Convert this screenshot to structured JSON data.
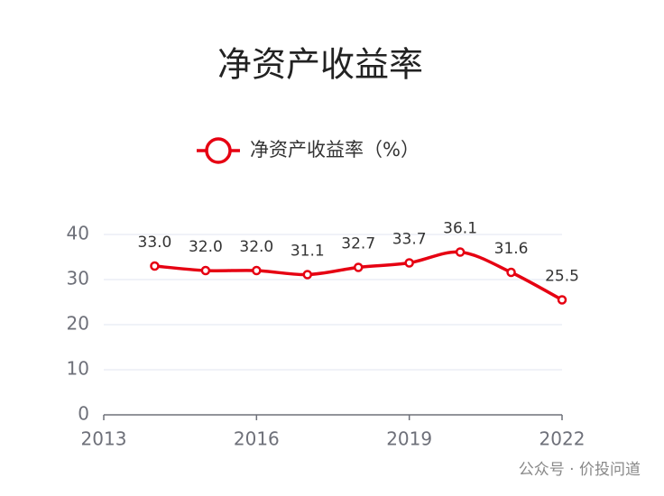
{
  "chart_data": {
    "type": "line",
    "title": "净资产收益率",
    "x": [
      2014,
      2015,
      2016,
      2017,
      2018,
      2019,
      2020,
      2021,
      2022
    ],
    "series": [
      {
        "name": "净资产收益率（%）",
        "color": "#e60012",
        "values": [
          33.0,
          32.0,
          32.0,
          31.1,
          32.7,
          33.7,
          36.1,
          31.6,
          25.5
        ],
        "value_labels": [
          "33.0",
          "32.0",
          "32.0",
          "31.1",
          "32.7",
          "33.7",
          "36.1",
          "31.6",
          "25.5"
        ]
      }
    ],
    "xlim": [
      2013,
      2022
    ],
    "xticks": [
      2013,
      2016,
      2019,
      2022
    ],
    "ylim": [
      0,
      40
    ],
    "yticks": [
      0,
      10,
      20,
      30,
      40
    ],
    "grid": true,
    "legend": "top",
    "smooth": true,
    "watermark": "公众号 · 价投问道"
  }
}
